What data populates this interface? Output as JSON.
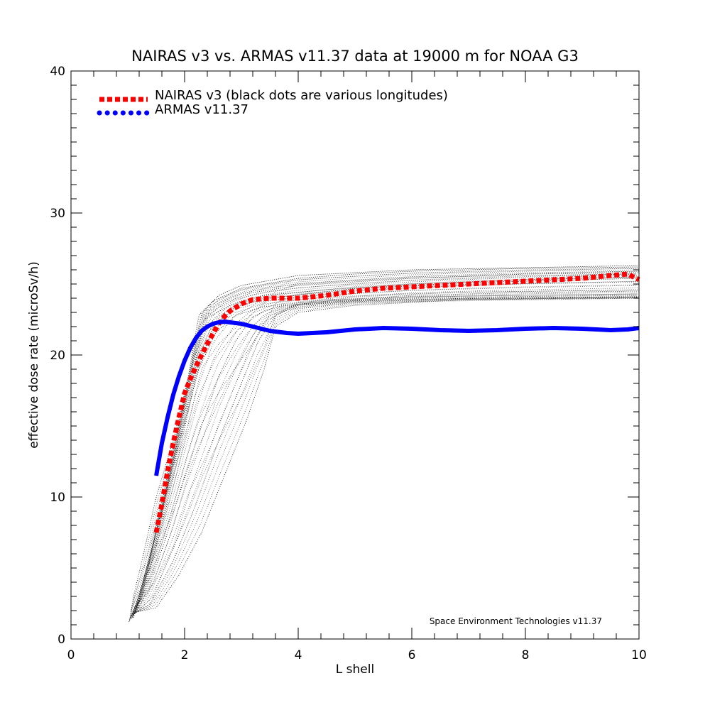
{
  "chart_data": {
    "type": "line",
    "title": "NAIRAS  v3 vs. ARMAS v11.37 data at 19000 m for NOAA G3",
    "xlabel": "L shell",
    "ylabel": "effective dose rate (microSv/h)",
    "xlim": [
      0,
      10
    ],
    "ylim": [
      0,
      40
    ],
    "x_ticks": [
      0,
      2,
      4,
      6,
      8,
      10
    ],
    "y_ticks": [
      0,
      10,
      20,
      30,
      40
    ],
    "x_tick_labels": [
      "0",
      "2",
      "4",
      "6",
      "8",
      "10"
    ],
    "y_tick_labels": [
      "0",
      "10",
      "20",
      "30",
      "40"
    ],
    "grid": false,
    "legend_position": "top-left",
    "credit": "Space Environment Technologies v11.37",
    "series": [
      {
        "name": "NAIRAS v3 (black dots are various longitudes)",
        "style": "dotted",
        "color": "#ff0000",
        "points": [
          [
            1.5,
            7.5
          ],
          [
            1.6,
            9.5
          ],
          [
            1.7,
            11.8
          ],
          [
            1.8,
            13.8
          ],
          [
            1.9,
            15.6
          ],
          [
            2.0,
            17.3
          ],
          [
            2.1,
            18.3
          ],
          [
            2.2,
            19.2
          ],
          [
            2.3,
            20.0
          ],
          [
            2.4,
            20.8
          ],
          [
            2.5,
            21.5
          ],
          [
            2.6,
            22.2
          ],
          [
            2.7,
            22.7
          ],
          [
            2.8,
            23.1
          ],
          [
            3.0,
            23.6
          ],
          [
            3.2,
            23.9
          ],
          [
            3.5,
            24.0
          ],
          [
            4.0,
            24.0
          ],
          [
            4.5,
            24.2
          ],
          [
            5.0,
            24.5
          ],
          [
            5.5,
            24.7
          ],
          [
            6.0,
            24.8
          ],
          [
            6.5,
            24.9
          ],
          [
            7.0,
            25.0
          ],
          [
            7.5,
            25.1
          ],
          [
            8.0,
            25.2
          ],
          [
            8.5,
            25.3
          ],
          [
            9.0,
            25.4
          ],
          [
            9.5,
            25.6
          ],
          [
            9.8,
            25.7
          ],
          [
            10.0,
            25.3
          ]
        ]
      },
      {
        "name": "ARMAS v11.37",
        "style": "solid",
        "color": "#0000ff",
        "points": [
          [
            1.5,
            11.5
          ],
          [
            1.6,
            13.8
          ],
          [
            1.7,
            15.6
          ],
          [
            1.8,
            17.2
          ],
          [
            1.9,
            18.5
          ],
          [
            2.0,
            19.6
          ],
          [
            2.1,
            20.5
          ],
          [
            2.2,
            21.2
          ],
          [
            2.3,
            21.7
          ],
          [
            2.4,
            22.0
          ],
          [
            2.5,
            22.2
          ],
          [
            2.6,
            22.3
          ],
          [
            2.7,
            22.35
          ],
          [
            2.8,
            22.3
          ],
          [
            3.0,
            22.2
          ],
          [
            3.2,
            22.0
          ],
          [
            3.5,
            21.7
          ],
          [
            3.8,
            21.55
          ],
          [
            4.0,
            21.5
          ],
          [
            4.5,
            21.6
          ],
          [
            5.0,
            21.8
          ],
          [
            5.5,
            21.9
          ],
          [
            6.0,
            21.85
          ],
          [
            6.5,
            21.75
          ],
          [
            7.0,
            21.7
          ],
          [
            7.5,
            21.75
          ],
          [
            8.0,
            21.85
          ],
          [
            8.5,
            21.9
          ],
          [
            9.0,
            21.85
          ],
          [
            9.5,
            21.75
          ],
          [
            9.8,
            21.8
          ],
          [
            10.0,
            21.9
          ]
        ]
      }
    ],
    "longitude_scatter": {
      "color": "#000000",
      "curves": [
        {
          "points": [
            [
              1.02,
              1.2
            ],
            [
              1.15,
              2.5
            ],
            [
              1.4,
              6.0
            ],
            [
              1.7,
              11.5
            ],
            [
              2.0,
              17.0
            ],
            [
              2.25,
              22.8
            ],
            [
              2.5,
              23.8
            ],
            [
              3.0,
              24.7
            ],
            [
              4.0,
              25.4
            ],
            [
              5.0,
              25.7
            ],
            [
              6.0,
              25.9
            ],
            [
              8.0,
              26.1
            ],
            [
              10.0,
              26.2
            ]
          ]
        },
        {
          "points": [
            [
              1.05,
              1.5
            ],
            [
              1.2,
              2.8
            ],
            [
              1.5,
              7.0
            ],
            [
              1.8,
              12.5
            ],
            [
              2.1,
              18.0
            ],
            [
              2.35,
              22.5
            ],
            [
              2.7,
              23.7
            ],
            [
              3.2,
              24.4
            ],
            [
              4.0,
              24.9
            ],
            [
              6.0,
              25.4
            ],
            [
              8.0,
              25.7
            ],
            [
              10.0,
              25.8
            ]
          ]
        },
        {
          "points": [
            [
              1.08,
              1.6
            ],
            [
              1.3,
              3.5
            ],
            [
              1.6,
              8.0
            ],
            [
              1.9,
              13.0
            ],
            [
              2.2,
              18.5
            ],
            [
              2.5,
              22.0
            ],
            [
              2.9,
              23.4
            ],
            [
              3.5,
              24.0
            ],
            [
              5.0,
              24.7
            ],
            [
              7.0,
              25.1
            ],
            [
              10.0,
              25.4
            ]
          ]
        },
        {
          "points": [
            [
              1.1,
              1.7
            ],
            [
              1.35,
              3.3
            ],
            [
              1.7,
              7.5
            ],
            [
              2.0,
              11.5
            ],
            [
              2.3,
              15.0
            ],
            [
              2.6,
              18.5
            ],
            [
              2.9,
              21.0
            ],
            [
              3.2,
              22.7
            ],
            [
              3.6,
              23.4
            ],
            [
              4.5,
              23.8
            ],
            [
              6.0,
              24.2
            ],
            [
              8.0,
              24.4
            ],
            [
              10.0,
              24.5
            ]
          ]
        },
        {
          "points": [
            [
              1.12,
              1.8
            ],
            [
              1.4,
              2.5
            ],
            [
              1.8,
              5.5
            ],
            [
              2.2,
              9.5
            ],
            [
              2.6,
              14.0
            ],
            [
              3.0,
              18.0
            ],
            [
              3.3,
              21.0
            ],
            [
              3.6,
              22.8
            ],
            [
              4.0,
              23.5
            ],
            [
              5.0,
              23.8
            ],
            [
              7.0,
              24.0
            ],
            [
              10.0,
              24.1
            ]
          ]
        },
        {
          "points": [
            [
              1.15,
              1.9
            ],
            [
              1.5,
              2.2
            ],
            [
              1.9,
              4.5
            ],
            [
              2.3,
              7.5
            ],
            [
              2.7,
              11.5
            ],
            [
              3.1,
              15.5
            ],
            [
              3.4,
              19.0
            ],
            [
              3.6,
              22.0
            ],
            [
              4.0,
              23.0
            ],
            [
              5.0,
              23.5
            ],
            [
              7.0,
              23.9
            ],
            [
              10.0,
              24.0
            ]
          ]
        },
        {
          "points": [
            [
              1.03,
              1.3
            ],
            [
              1.1,
              3.0
            ],
            [
              1.25,
              5.5
            ],
            [
              1.5,
              10.0
            ],
            [
              1.8,
              14.0
            ],
            [
              2.1,
              19.0
            ],
            [
              2.3,
              22.9
            ],
            [
              2.6,
              24.2
            ],
            [
              3.0,
              24.9
            ],
            [
              4.0,
              25.6
            ],
            [
              6.0,
              26.0
            ],
            [
              10.0,
              26.3
            ]
          ]
        },
        {
          "points": [
            [
              1.06,
              1.4
            ],
            [
              1.25,
              3.0
            ],
            [
              1.55,
              8.5
            ],
            [
              1.85,
              13.5
            ],
            [
              2.15,
              19.5
            ],
            [
              2.4,
              22.6
            ],
            [
              2.8,
              23.5
            ],
            [
              3.4,
              24.2
            ],
            [
              4.5,
              24.6
            ],
            [
              6.0,
              25.0
            ],
            [
              8.0,
              25.3
            ],
            [
              10.0,
              25.5
            ]
          ]
        },
        {
          "points": [
            [
              1.1,
              1.5
            ],
            [
              1.3,
              4.5
            ],
            [
              1.6,
              9.0
            ],
            [
              1.95,
              14.5
            ],
            [
              2.25,
              19.0
            ],
            [
              2.55,
              21.6
            ],
            [
              2.9,
              22.8
            ],
            [
              3.4,
              23.4
            ],
            [
              4.5,
              23.9
            ],
            [
              6.0,
              24.1
            ],
            [
              10.0,
              24.3
            ]
          ]
        },
        {
          "points": [
            [
              1.13,
              1.8
            ],
            [
              1.45,
              3.0
            ],
            [
              1.8,
              6.5
            ],
            [
              2.1,
              10.5
            ],
            [
              2.45,
              13.5
            ],
            [
              2.8,
              17.0
            ],
            [
              3.1,
              20.0
            ],
            [
              3.4,
              22.3
            ],
            [
              3.8,
              23.2
            ],
            [
              5.0,
              23.7
            ],
            [
              10.0,
              24.0
            ]
          ]
        }
      ]
    }
  }
}
